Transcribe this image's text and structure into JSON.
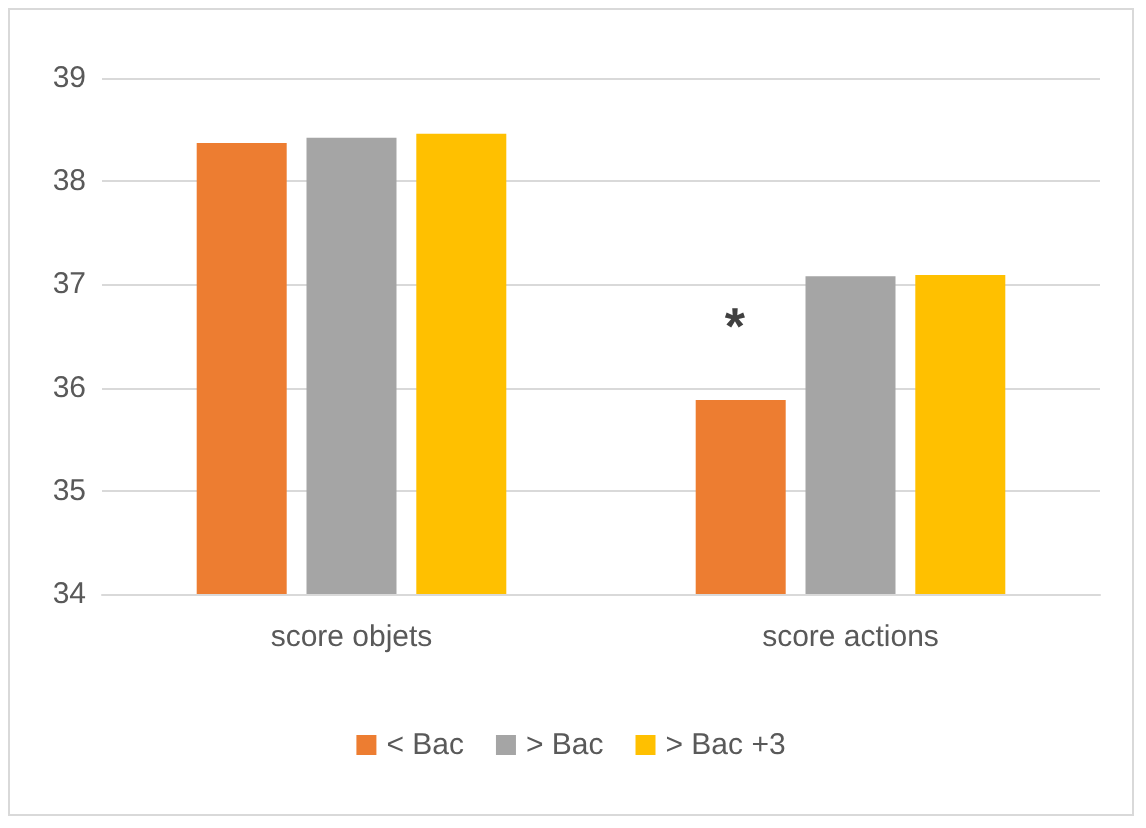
{
  "chart_data": {
    "type": "bar",
    "categories": [
      "score objets",
      "score actions"
    ],
    "series": [
      {
        "name": "< Bac",
        "color": "#ed7d31",
        "values": [
          38.37,
          35.88
        ]
      },
      {
        "name": "> Bac",
        "color": "#a5a5a5",
        "values": [
          38.42,
          37.08
        ]
      },
      {
        "name": "> Bac +3",
        "color": "#ffc000",
        "values": [
          38.46,
          37.09
        ]
      }
    ],
    "ylim": [
      34,
      39
    ],
    "yticks": [
      34,
      35,
      36,
      37,
      38,
      39
    ],
    "grid": "y",
    "legend": "bottom",
    "annotations": [
      "*"
    ]
  }
}
